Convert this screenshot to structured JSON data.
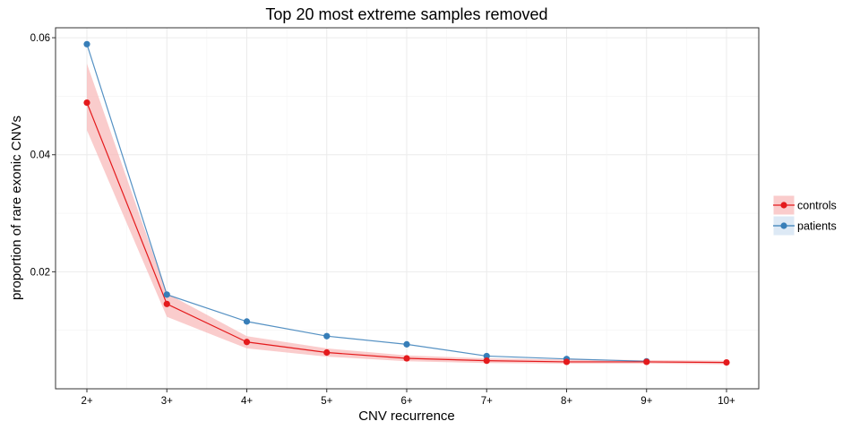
{
  "chart_data": {
    "type": "line",
    "title": "Top 20 most extreme samples removed",
    "xlabel": "CNV recurrence",
    "ylabel": "proportion of rare exonic CNVs",
    "categories": [
      "2+",
      "3+",
      "4+",
      "5+",
      "6+",
      "7+",
      "8+",
      "9+",
      "10+"
    ],
    "ylim": [
      0.0,
      0.0617
    ],
    "yticks": [
      0.02,
      0.04,
      0.06
    ],
    "ytick_labels": [
      "0.02",
      "0.04",
      "0.06"
    ],
    "grid": true,
    "legend_position": "right",
    "series": [
      {
        "name": "controls",
        "color": "#E41A1C",
        "band_color": "#F8BBBB",
        "values": [
          0.0489,
          0.0145,
          0.008,
          0.0062,
          0.0052,
          0.0048,
          0.0046,
          0.0046,
          0.0045
        ],
        "lower": [
          0.0442,
          0.0123,
          0.0069,
          0.0055,
          0.0047,
          0.0044,
          0.0043,
          0.0043,
          0.0042
        ],
        "upper": [
          0.0556,
          0.0163,
          0.009,
          0.0069,
          0.0057,
          0.0052,
          0.005,
          0.0049,
          0.0048
        ]
      },
      {
        "name": "patients",
        "color": "#377EB8",
        "values": [
          0.0589,
          0.0161,
          0.0115,
          0.009,
          0.0076,
          0.0056,
          0.0051,
          0.0047,
          null
        ]
      }
    ]
  }
}
